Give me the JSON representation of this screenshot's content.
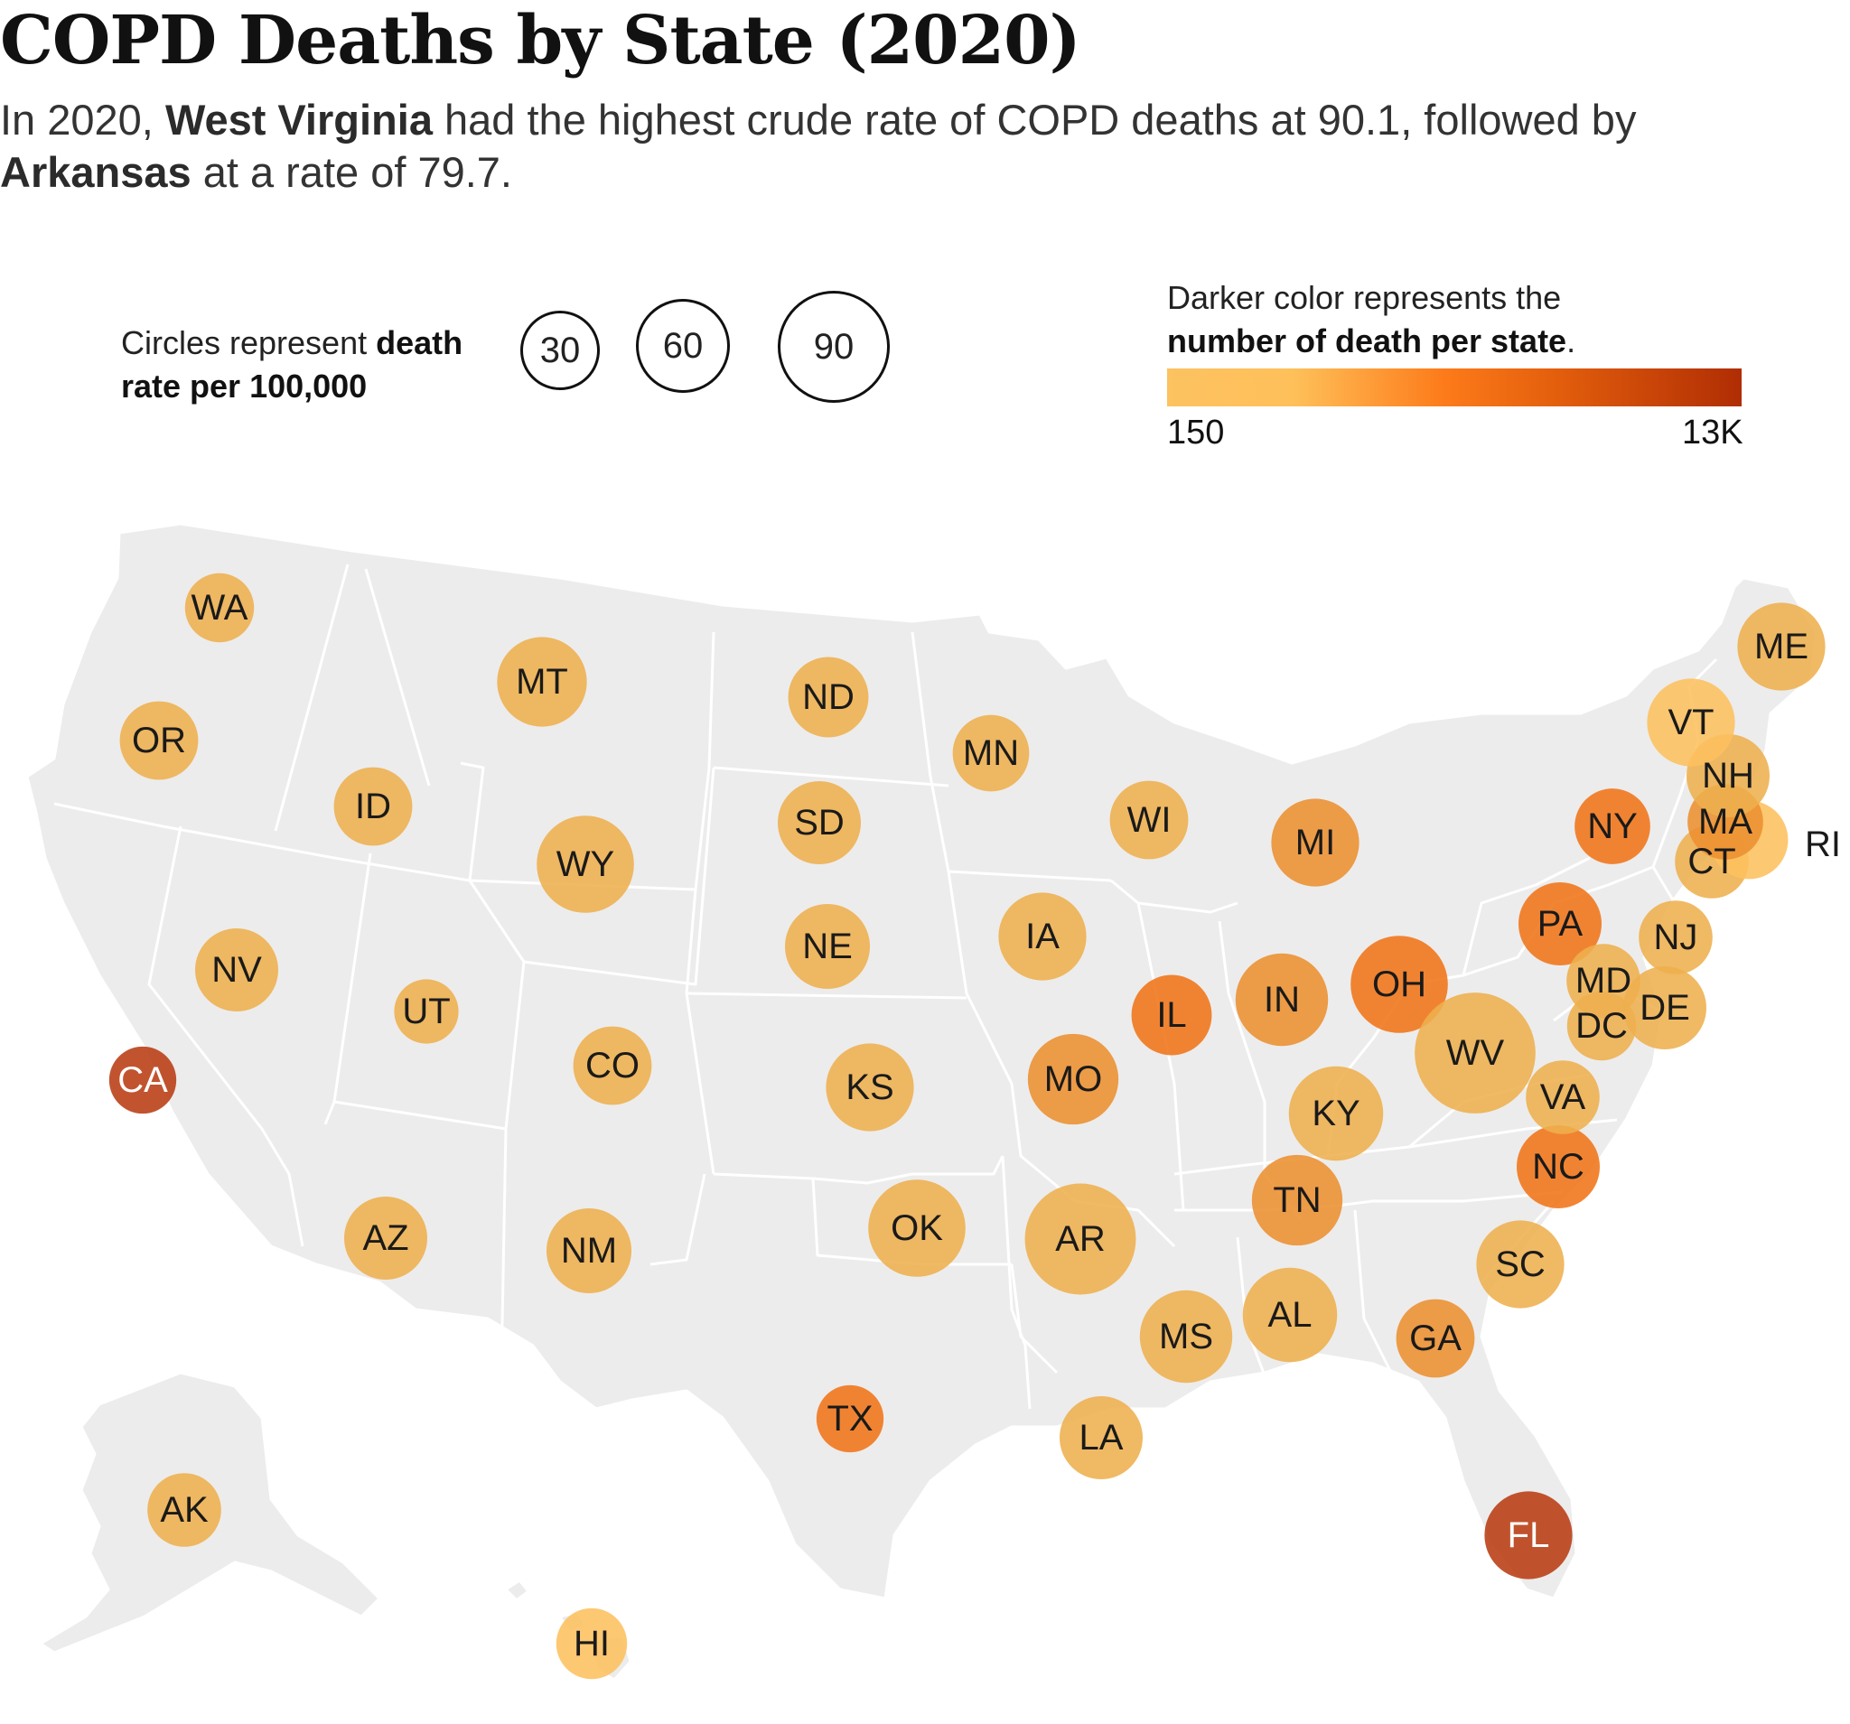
{
  "title": "COPD Deaths by State (2020)",
  "subtitle": {
    "p1": "In 2020, ",
    "b1": "West Virginia",
    "p2": " had the highest crude rate of COPD deaths at 90.1, followed by ",
    "b2": "Arkansas",
    "p3": " at a rate of 79.7."
  },
  "size_legend": {
    "text": "Circles represent ",
    "bold": "death rate per 100,000",
    "values": [
      "30",
      "60",
      "90"
    ]
  },
  "color_legend": {
    "text": "Darker color represents the ",
    "bold": "number of death per state",
    "end": ".",
    "min_label": "150",
    "max_label": "13K",
    "colors": [
      "#fdc261",
      "#fd7b1a",
      "#b02d04"
    ]
  },
  "chart_data": {
    "type": "scatter",
    "encoding": "proportional circles on US map; radius = crude death rate per 100,000, color = number of deaths",
    "states": [
      {
        "abbr": "WA",
        "rate": 35,
        "tone": "mid"
      },
      {
        "abbr": "OR",
        "rate": 45,
        "tone": "mid"
      },
      {
        "abbr": "CA",
        "rate": 33,
        "tone": "max"
      },
      {
        "abbr": "NV",
        "rate": 50,
        "tone": "mid"
      },
      {
        "abbr": "ID",
        "rate": 45,
        "tone": "mid"
      },
      {
        "abbr": "MT",
        "rate": 57,
        "tone": "mid"
      },
      {
        "abbr": "WY",
        "rate": 65,
        "tone": "mid"
      },
      {
        "abbr": "UT",
        "rate": 30,
        "tone": "mid"
      },
      {
        "abbr": "CO",
        "rate": 45,
        "tone": "mid"
      },
      {
        "abbr": "AZ",
        "rate": 50,
        "tone": "mid"
      },
      {
        "abbr": "NM",
        "rate": 52,
        "tone": "mid"
      },
      {
        "abbr": "ND",
        "rate": 47,
        "tone": "mid"
      },
      {
        "abbr": "SD",
        "rate": 50,
        "tone": "mid"
      },
      {
        "abbr": "NE",
        "rate": 52,
        "tone": "mid"
      },
      {
        "abbr": "KS",
        "rate": 55,
        "tone": "mid"
      },
      {
        "abbr": "OK",
        "rate": 65,
        "tone": "mid"
      },
      {
        "abbr": "TX",
        "rate": 33,
        "tone": "high"
      },
      {
        "abbr": "MN",
        "rate": 43,
        "tone": "mid"
      },
      {
        "abbr": "IA",
        "rate": 55,
        "tone": "mid"
      },
      {
        "abbr": "MO",
        "rate": 58,
        "tone": "midhigh"
      },
      {
        "abbr": "AR",
        "rate": 79.7,
        "tone": "mid"
      },
      {
        "abbr": "LA",
        "rate": 50,
        "tone": "mid"
      },
      {
        "abbr": "WI",
        "rate": 45,
        "tone": "mid"
      },
      {
        "abbr": "IL",
        "rate": 47,
        "tone": "high"
      },
      {
        "abbr": "MI",
        "rate": 55,
        "tone": "midhigh"
      },
      {
        "abbr": "IN",
        "rate": 60,
        "tone": "midhigh"
      },
      {
        "abbr": "OH",
        "rate": 65,
        "tone": "high"
      },
      {
        "abbr": "KY",
        "rate": 62,
        "tone": "mid"
      },
      {
        "abbr": "TN",
        "rate": 58,
        "tone": "midhigh"
      },
      {
        "abbr": "MS",
        "rate": 60,
        "tone": "mid"
      },
      {
        "abbr": "AL",
        "rate": 62,
        "tone": "mid"
      },
      {
        "abbr": "GA",
        "rate": 45,
        "tone": "midhigh"
      },
      {
        "abbr": "FL",
        "rate": 55,
        "tone": "max"
      },
      {
        "abbr": "SC",
        "rate": 55,
        "tone": "mid"
      },
      {
        "abbr": "NC",
        "rate": 50,
        "tone": "high"
      },
      {
        "abbr": "VA",
        "rate": 40,
        "tone": "mid"
      },
      {
        "abbr": "WV",
        "rate": 90.1,
        "tone": "mid"
      },
      {
        "abbr": "PA",
        "rate": 50,
        "tone": "high"
      },
      {
        "abbr": "NY",
        "rate": 42,
        "tone": "high"
      },
      {
        "abbr": "MD",
        "rate": 40,
        "tone": "mid"
      },
      {
        "abbr": "DC",
        "rate": 35,
        "tone": "mid"
      },
      {
        "abbr": "DE",
        "rate": 50,
        "tone": "mid"
      },
      {
        "abbr": "NJ",
        "rate": 40,
        "tone": "mid"
      },
      {
        "abbr": "CT",
        "rate": 40,
        "tone": "mid"
      },
      {
        "abbr": "RI",
        "rate": 45,
        "tone": "low"
      },
      {
        "abbr": "MA",
        "rate": 42,
        "tone": "midhigh"
      },
      {
        "abbr": "NH",
        "rate": 50,
        "tone": "mid"
      },
      {
        "abbr": "VT",
        "rate": 55,
        "tone": "low"
      },
      {
        "abbr": "ME",
        "rate": 55,
        "tone": "mid"
      },
      {
        "abbr": "AK",
        "rate": 40,
        "tone": "mid"
      },
      {
        "abbr": "HI",
        "rate": 37,
        "tone": "low"
      }
    ],
    "tone_colors": {
      "low": "#fdc05f",
      "mid": "#eeaf4d",
      "midhigh": "#ec8f30",
      "high": "#f07418",
      "max": "#b83c12"
    }
  }
}
